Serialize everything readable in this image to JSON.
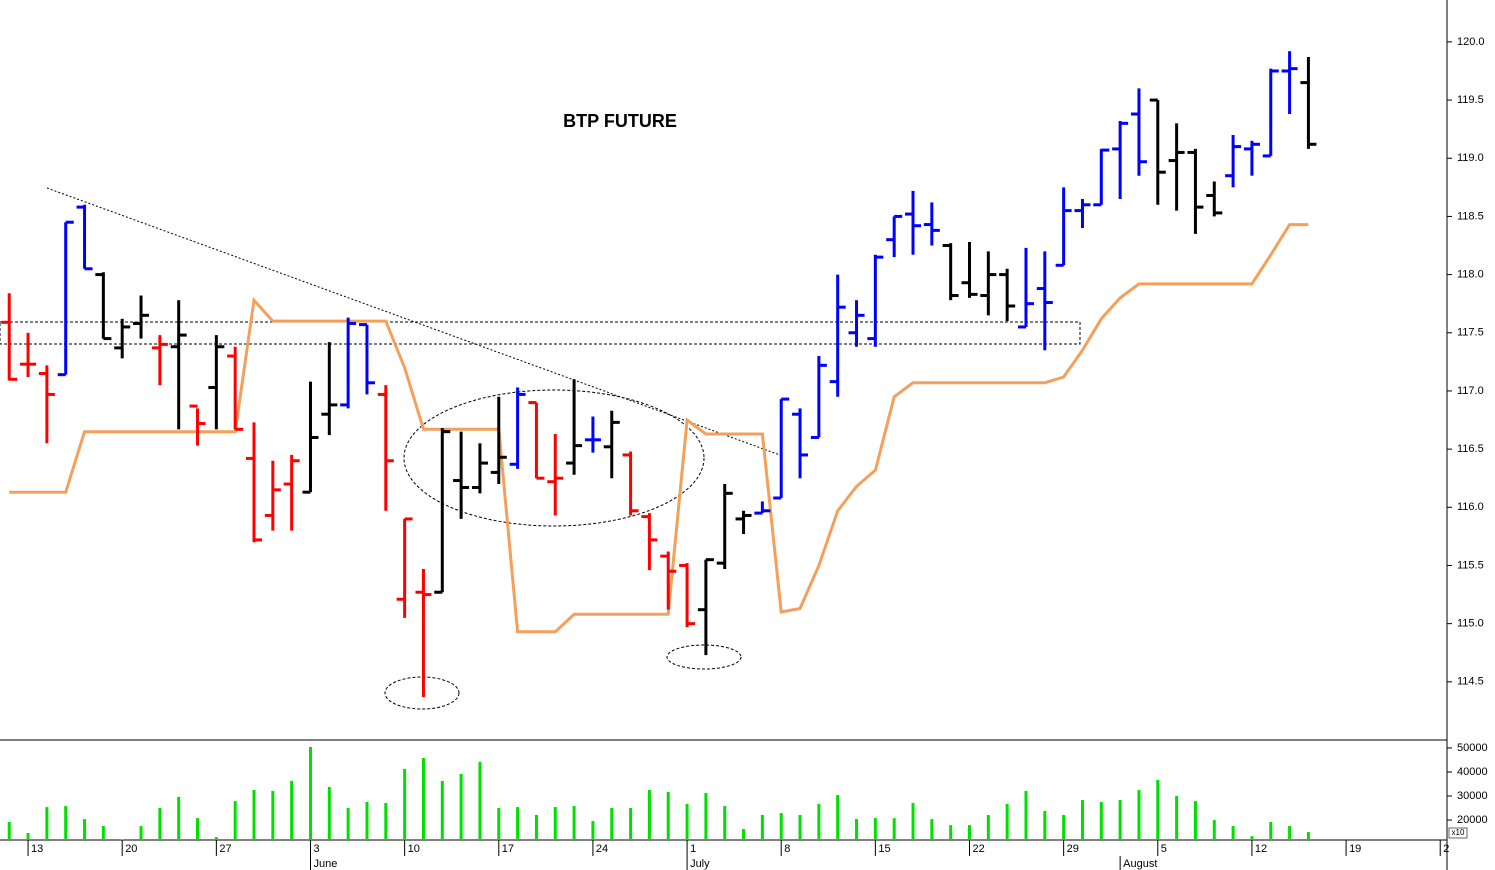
{
  "chart_data": [
    {
      "type": "ohlc",
      "title": "BTP FUTURE",
      "x": [
        0,
        1,
        2,
        3,
        4,
        5,
        6,
        7,
        8,
        9,
        10,
        11,
        12,
        13,
        14,
        15,
        16,
        17,
        18,
        19,
        20,
        21,
        22,
        23,
        24,
        25,
        26,
        27,
        28,
        29,
        30,
        31,
        32,
        33,
        34,
        35,
        36,
        37,
        38,
        39,
        40,
        41,
        42,
        43,
        44,
        45,
        46,
        47,
        48,
        49,
        50,
        51,
        52,
        53,
        54,
        55,
        56,
        57,
        58,
        59,
        60,
        61,
        62,
        63,
        64,
        65,
        66,
        67,
        68,
        69
      ],
      "open": [
        117.59,
        117.23,
        117.15,
        117.14,
        118.58,
        118.0,
        117.37,
        117.58,
        117.37,
        117.38,
        116.87,
        117.03,
        117.3,
        116.42,
        115.93,
        116.2,
        116.13,
        116.8,
        116.88,
        117.57,
        116.97,
        115.21,
        115.27,
        115.27,
        116.23,
        116.17,
        116.3,
        116.37,
        116.9,
        116.22,
        116.38,
        116.58,
        116.52,
        116.45,
        115.92,
        115.58,
        115.5,
        115.12,
        115.52,
        115.9,
        115.95,
        116.08,
        116.8,
        116.6,
        117.08,
        117.5,
        117.45,
        118.3,
        118.52,
        118.43,
        118.25,
        117.93,
        117.82,
        118.0,
        117.55,
        117.88,
        118.08,
        118.55,
        118.6,
        119.08,
        119.38,
        119.5,
        118.98,
        119.05,
        118.68,
        118.85,
        119.08,
        119.02,
        119.75,
        119.65
      ],
      "high": [
        117.84,
        117.5,
        117.22,
        118.45,
        118.6,
        118.02,
        117.62,
        117.82,
        117.48,
        117.78,
        116.85,
        117.48,
        117.38,
        116.73,
        116.4,
        116.45,
        117.08,
        117.42,
        117.63,
        117.57,
        117.05,
        115.9,
        115.47,
        116.68,
        116.65,
        116.55,
        116.95,
        117.03,
        116.9,
        116.63,
        117.1,
        116.78,
        116.83,
        116.48,
        115.95,
        115.62,
        115.52,
        115.55,
        116.2,
        115.97,
        116.05,
        116.93,
        116.85,
        117.3,
        118.0,
        117.78,
        118.17,
        118.5,
        118.72,
        118.62,
        118.27,
        118.28,
        118.2,
        118.05,
        118.23,
        118.2,
        118.75,
        118.65,
        119.08,
        119.32,
        119.6,
        119.5,
        119.3,
        119.08,
        118.8,
        119.2,
        119.15,
        119.77,
        119.92,
        119.87
      ],
      "low": [
        117.09,
        117.12,
        116.55,
        117.14,
        118.05,
        117.45,
        117.28,
        117.45,
        117.05,
        116.67,
        116.53,
        116.67,
        116.67,
        115.7,
        115.8,
        115.8,
        116.13,
        116.62,
        116.85,
        116.97,
        115.97,
        115.05,
        114.37,
        115.27,
        115.9,
        116.12,
        116.2,
        116.33,
        116.25,
        115.93,
        116.28,
        116.47,
        116.25,
        115.93,
        115.46,
        115.12,
        114.97,
        114.73,
        115.47,
        115.77,
        115.95,
        116.08,
        116.25,
        116.6,
        116.95,
        117.38,
        117.38,
        118.15,
        118.17,
        118.25,
        117.78,
        117.8,
        117.65,
        117.6,
        117.55,
        117.35,
        118.08,
        118.4,
        118.6,
        118.65,
        118.85,
        118.6,
        118.55,
        118.35,
        118.5,
        118.75,
        118.85,
        119.02,
        119.38,
        119.08
      ],
      "close": [
        117.1,
        117.23,
        116.97,
        118.45,
        118.05,
        117.45,
        117.55,
        117.65,
        117.4,
        117.48,
        116.72,
        117.38,
        116.67,
        115.72,
        116.15,
        116.4,
        116.6,
        116.88,
        117.58,
        117.07,
        116.4,
        115.9,
        115.25,
        116.65,
        116.17,
        116.38,
        116.43,
        116.97,
        116.25,
        116.25,
        116.53,
        116.58,
        116.73,
        115.97,
        115.72,
        115.45,
        115.0,
        115.55,
        116.12,
        115.93,
        115.97,
        116.93,
        116.45,
        117.22,
        117.72,
        117.65,
        118.15,
        118.5,
        118.42,
        118.38,
        117.82,
        117.83,
        118.0,
        117.73,
        117.75,
        117.76,
        118.55,
        118.6,
        119.07,
        119.3,
        118.97,
        118.88,
        119.05,
        118.58,
        118.53,
        119.1,
        119.12,
        119.75,
        119.77,
        119.12
      ],
      "bar_colors": [
        "#f00",
        "#f00",
        "#f00",
        "#00f",
        "#00f",
        "#000",
        "#000",
        "#000",
        "#f00",
        "#000",
        "#f00",
        "#000",
        "#f00",
        "#f00",
        "#f00",
        "#f00",
        "#000",
        "#000",
        "#00f",
        "#00f",
        "#f00",
        "#f00",
        "#f00",
        "#000",
        "#000",
        "#000",
        "#000",
        "#00f",
        "#f00",
        "#f00",
        "#000",
        "#00f",
        "#000",
        "#f00",
        "#f00",
        "#f00",
        "#f00",
        "#000",
        "#000",
        "#000",
        "#00f",
        "#00f",
        "#00f",
        "#00f",
        "#00f",
        "#00f",
        "#00f",
        "#00f",
        "#00f",
        "#00f",
        "#000",
        "#000",
        "#000",
        "#000",
        "#00f",
        "#00f",
        "#00f",
        "#00f",
        "#00f",
        "#00f",
        "#00f",
        "#000",
        "#000",
        "#000",
        "#000",
        "#00f",
        "#00f",
        "#00f",
        "#00f",
        "#000"
      ],
      "stop_line": {
        "color": "#f5a05a",
        "values": [
          116.13,
          116.13,
          116.13,
          116.13,
          116.65,
          116.65,
          116.65,
          116.65,
          116.65,
          116.65,
          116.65,
          116.65,
          116.65,
          117.78,
          117.6,
          117.6,
          117.6,
          117.6,
          117.6,
          117.6,
          117.6,
          117.2,
          116.67,
          116.67,
          116.67,
          116.67,
          116.67,
          114.93,
          114.93,
          114.93,
          115.08,
          115.08,
          115.08,
          115.08,
          115.08,
          115.08,
          116.75,
          116.63,
          116.63,
          116.63,
          116.63,
          115.1,
          115.13,
          115.5,
          115.97,
          116.18,
          116.32,
          116.95,
          117.07,
          117.07,
          117.07,
          117.07,
          117.07,
          117.07,
          117.07,
          117.07,
          117.12,
          117.35,
          117.62,
          117.8,
          117.92,
          117.92,
          117.92,
          117.92,
          117.92,
          117.92,
          117.92,
          118.17,
          118.43,
          118.43
        ]
      },
      "xlim": [
        -0.49,
        76.36
      ],
      "ylim": [
        114.0,
        120.36
      ],
      "yticks": [
        114.5,
        {
          "value": 115,
          "label": "115.0"
        },
        115.5,
        {
          "value": 116,
          "label": "116.0"
        },
        116.5,
        {
          "value": 117,
          "label": "117.0"
        },
        117.5,
        {
          "value": 118,
          "label": "118.0"
        },
        118.5,
        {
          "value": 119,
          "label": "119.0"
        },
        119.5,
        {
          "value": 120,
          "label": "120.0"
        }
      ]
    },
    {
      "type": "bar",
      "color": "#00e000",
      "scale_note": "x10",
      "x": [
        0,
        1,
        2,
        3,
        4,
        5,
        6,
        7,
        8,
        9,
        10,
        11,
        12,
        13,
        14,
        15,
        16,
        17,
        18,
        19,
        20,
        21,
        22,
        23,
        24,
        25,
        26,
        27,
        28,
        29,
        30,
        31,
        32,
        33,
        34,
        35,
        36,
        37,
        38,
        39,
        40,
        41,
        42,
        43,
        44,
        45,
        46,
        47,
        48,
        49,
        50,
        51,
        52,
        53,
        54,
        55,
        56,
        57,
        58,
        59,
        60,
        61,
        62,
        63,
        64,
        65,
        66,
        67,
        68,
        69
      ],
      "values": [
        19200,
        14600,
        25400,
        25800,
        20400,
        17500,
        12000,
        17500,
        25000,
        29600,
        20800,
        12900,
        27900,
        32500,
        32100,
        36300,
        50400,
        33750,
        25000,
        27500,
        27100,
        41250,
        45800,
        36250,
        39200,
        44200,
        25000,
        25400,
        22100,
        25400,
        25800,
        19600,
        25000,
        25000,
        32500,
        31700,
        26700,
        31250,
        25800,
        16250,
        22100,
        22900,
        22100,
        26700,
        30400,
        20400,
        20800,
        20800,
        27100,
        20400,
        17900,
        17900,
        22100,
        26700,
        32100,
        23750,
        22100,
        28300,
        27500,
        28300,
        32500,
        36700,
        30000,
        27900,
        20000,
        17500,
        13300,
        19200,
        17500,
        15000
      ],
      "xlim": [
        -0.49,
        76.36
      ],
      "ylim": [
        11700,
        53300
      ],
      "yticks": [
        20000,
        30000,
        40000,
        50000
      ],
      "xticks": [
        {
          "value": 1,
          "label": "13"
        },
        {
          "value": 6,
          "label": "20"
        },
        {
          "value": 11,
          "label": "27"
        },
        {
          "value": 16,
          "label": "3"
        },
        {
          "value": 21,
          "label": "10"
        },
        {
          "value": 26,
          "label": "17"
        },
        {
          "value": 31,
          "label": "24"
        },
        {
          "value": 36,
          "label": "1"
        },
        {
          "value": 41,
          "label": "8"
        },
        {
          "value": 46,
          "label": "15"
        },
        {
          "value": 51,
          "label": "22"
        },
        {
          "value": 56,
          "label": "29"
        },
        {
          "value": 61,
          "label": "5"
        },
        {
          "value": 66,
          "label": "12"
        },
        {
          "value": 71,
          "label": "19"
        },
        {
          "value": 76,
          "label": "2"
        }
      ],
      "month_ticks": [
        {
          "value": 16,
          "label": "June"
        },
        {
          "value": 36,
          "label": "July"
        },
        {
          "value": 59,
          "label": "August"
        }
      ]
    }
  ]
}
